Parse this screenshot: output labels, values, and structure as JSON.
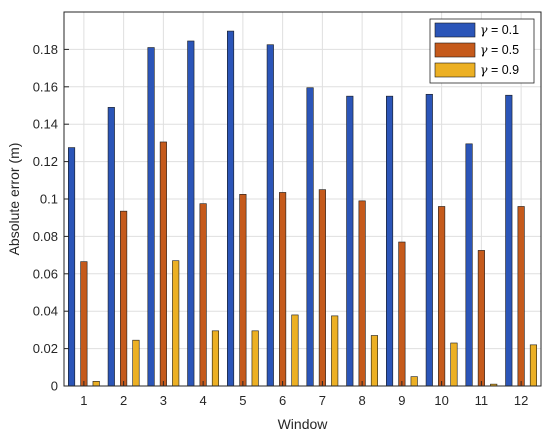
{
  "chart_data": {
    "type": "bar",
    "xlabel": "Window",
    "ylabel": "Absolute error (m)",
    "categories": [
      "1",
      "2",
      "3",
      "4",
      "5",
      "6",
      "7",
      "8",
      "9",
      "10",
      "11",
      "12"
    ],
    "ylim": [
      0,
      0.2
    ],
    "yticks": [
      "0",
      "0.02",
      "0.04",
      "0.06",
      "0.08",
      "0.1",
      "0.12",
      "0.14",
      "0.16",
      "0.18"
    ],
    "grid": true,
    "legend_position": "top-right",
    "series": [
      {
        "name": "γ = 0.1",
        "label_prefix": "γ",
        "label_suffix": " = 0.1",
        "color": "#2b55b8",
        "values": [
          0.1275,
          0.149,
          0.181,
          0.1845,
          0.1898,
          0.1825,
          0.1595,
          0.155,
          0.155,
          0.156,
          0.1295,
          0.1555
        ]
      },
      {
        "name": "γ = 0.5",
        "label_prefix": "γ",
        "label_suffix": " = 0.5",
        "color": "#c55a1b",
        "values": [
          0.0665,
          0.0935,
          0.1305,
          0.0975,
          0.1025,
          0.1035,
          0.105,
          0.099,
          0.077,
          0.096,
          0.0725,
          0.096
        ]
      },
      {
        "name": "γ = 0.9",
        "label_prefix": "γ",
        "label_suffix": " = 0.9",
        "color": "#ecb024",
        "values": [
          0.0025,
          0.0245,
          0.067,
          0.0295,
          0.0295,
          0.038,
          0.0375,
          0.027,
          0.005,
          0.023,
          0.001,
          0.022
        ]
      }
    ]
  }
}
